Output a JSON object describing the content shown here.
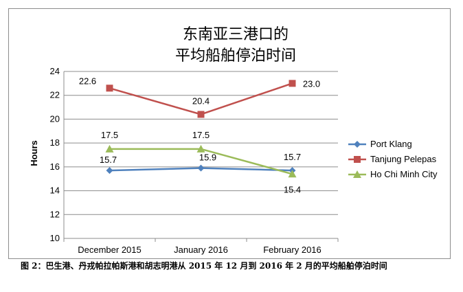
{
  "chart_data": {
    "type": "line",
    "title_lines": [
      "东南亚三港口的",
      "平均船舶停泊时间"
    ],
    "ylabel": "Hours",
    "xlabel": "",
    "categories": [
      "December 2015",
      "January 2016",
      "February 2016"
    ],
    "ylim": [
      10,
      24
    ],
    "yticks": [
      "10",
      "12",
      "14",
      "16",
      "18",
      "20",
      "22",
      "24"
    ],
    "grid": true,
    "legend_position": "right",
    "series": [
      {
        "name": "Port Klang",
        "values": [
          15.7,
          15.9,
          15.7
        ],
        "labels": [
          "15.7",
          "15.9",
          "15.7"
        ],
        "color": "#4f81bd",
        "marker": "diamond"
      },
      {
        "name": "Tanjung Pelepas",
        "values": [
          22.6,
          20.4,
          23.0
        ],
        "labels": [
          "22.6",
          "20.4",
          "23.0"
        ],
        "color": "#c0504d",
        "marker": "square"
      },
      {
        "name": "Ho Chi Minh City",
        "values": [
          17.5,
          17.5,
          15.4
        ],
        "labels": [
          "17.5",
          "17.5",
          "15.4"
        ],
        "color": "#9bbb59",
        "marker": "triangle"
      }
    ]
  },
  "caption": "图 2：巴生港、丹戎帕拉帕斯港和胡志明港从 2015 年 12 月到 2016 年 2 月的平均船舶停泊时间"
}
